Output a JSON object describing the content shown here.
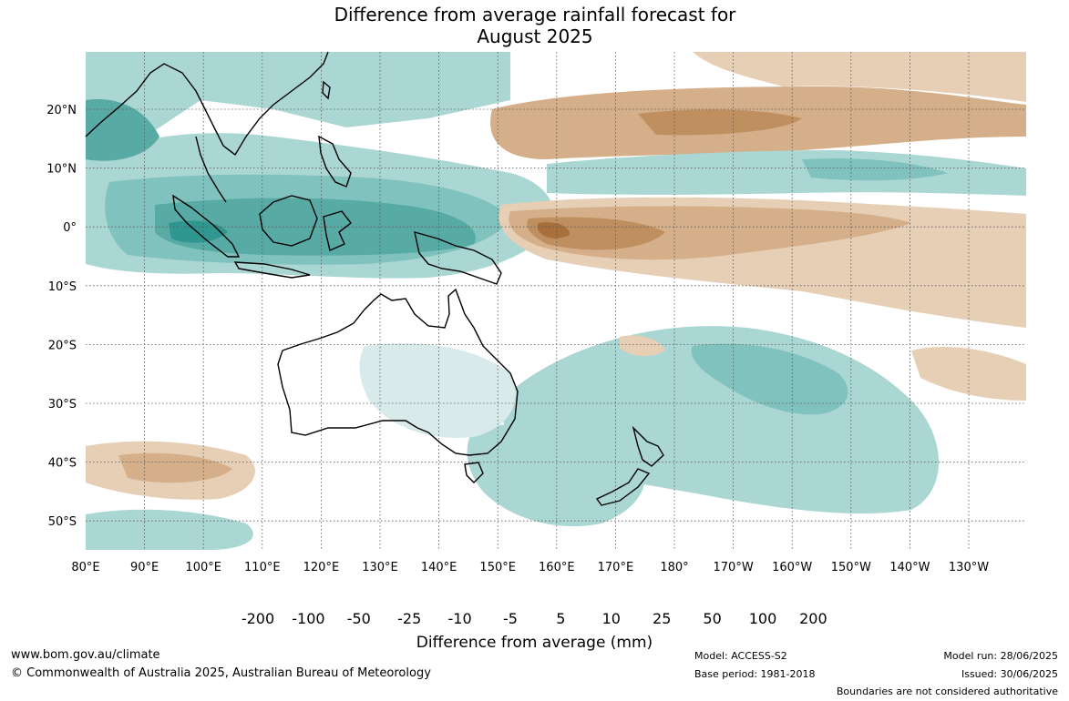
{
  "title_line1": "Difference from average rainfall forecast for",
  "title_line2": "August 2025",
  "map": {
    "lon_labels": [
      "80°E",
      "90°E",
      "100°E",
      "110°E",
      "120°E",
      "130°E",
      "140°E",
      "150°E",
      "160°E",
      "170°E",
      "180°",
      "170°W",
      "160°W",
      "150°W",
      "140°W",
      "130°W"
    ],
    "lat_labels": [
      "20°N",
      "10°N",
      "0°",
      "10°S",
      "20°S",
      "30°S",
      "40°S",
      "50°S"
    ],
    "gridlines": true
  },
  "colorbar": {
    "title": "Difference from average (mm)",
    "tick_labels": [
      "-200",
      "-100",
      "-50",
      "-25",
      "-10",
      "-5",
      "5",
      "10",
      "25",
      "50",
      "100",
      "200"
    ],
    "colors": [
      "#8f5a2b",
      "#a86f3a",
      "#bf8f5f",
      "#d4af8a",
      "#e6cfb5",
      "#f2ebe3",
      "#ffffff",
      "#d8ebea",
      "#aad6d3",
      "#80c2bd",
      "#58aaa5",
      "#2f9790",
      "#1e6f6b"
    ]
  },
  "footer": {
    "website": "www.bom.gov.au/climate",
    "copyright": "© Commonwealth of Australia 2025, Australian Bureau of Meteorology",
    "model": "Model: ACCESS-S2",
    "base_period": "Base period: 1981-2018",
    "model_run": "Model run: 28/06/2025",
    "issued": "Issued: 30/06/2025",
    "disclaimer": "Boundaries are not considered authoritative"
  }
}
